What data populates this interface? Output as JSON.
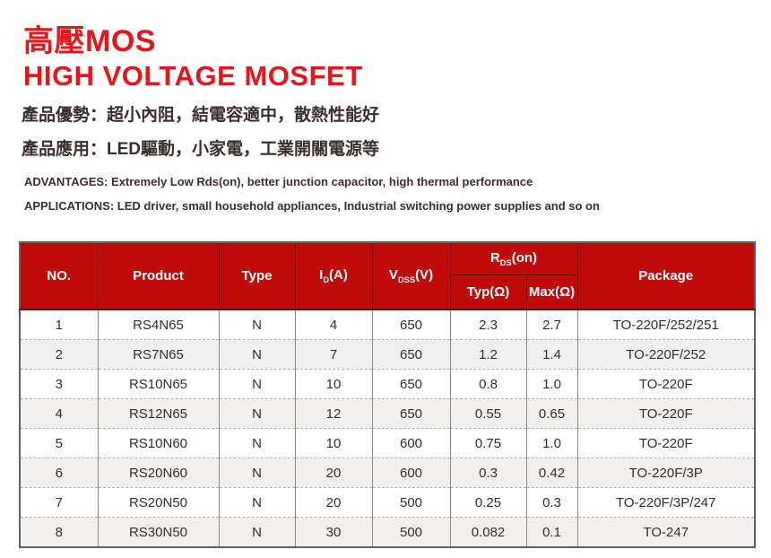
{
  "header": {
    "title_zh": "高壓MOS",
    "title_en": "HIGH VOLTAGE MOSFET",
    "advantages_zh": "產品優勢：超小內阻，結電容適中，散熱性能好",
    "applications_zh": "產品應用：LED驅動，小家電，工業開關電源等",
    "advantages_en": "ADVANTAGES: Extremely Low Rds(on), better junction capacitor, high thermal performance",
    "applications_en": "APPLICATIONS: LED driver, small household appliances, Industrial switching power supplies and so on"
  },
  "colors": {
    "title_red": "#e8141c",
    "table_header_red": "#c00b0b",
    "row_alt_gray": "#f1f0ee",
    "text_dark": "#332e2c"
  },
  "table": {
    "headers": {
      "no": "NO.",
      "product": "Product",
      "type": "Type",
      "id": {
        "base": "I",
        "sub": "D",
        "suffix": "(A)"
      },
      "vdss": {
        "base": "V",
        "sub": "DSS",
        "suffix": "(V)"
      },
      "rds": {
        "base": "R",
        "sub": "DS",
        "suffix": "(on)"
      },
      "typ": "Typ(Ω)",
      "max": "Max(Ω)",
      "package": "Package"
    },
    "rows": [
      {
        "no": "1",
        "product": "RS4N65",
        "type": "N",
        "id": "4",
        "vdss": "650",
        "typ": "2.3",
        "max": "2.7",
        "package": "TO-220F/252/251"
      },
      {
        "no": "2",
        "product": "RS7N65",
        "type": "N",
        "id": "7",
        "vdss": "650",
        "typ": "1.2",
        "max": "1.4",
        "package": "TO-220F/252"
      },
      {
        "no": "3",
        "product": "RS10N65",
        "type": "N",
        "id": "10",
        "vdss": "650",
        "typ": "0.8",
        "max": "1.0",
        "package": "TO-220F"
      },
      {
        "no": "4",
        "product": "RS12N65",
        "type": "N",
        "id": "12",
        "vdss": "650",
        "typ": "0.55",
        "max": "0.65",
        "package": "TO-220F"
      },
      {
        "no": "5",
        "product": "RS10N60",
        "type": "N",
        "id": "10",
        "vdss": "600",
        "typ": "0.75",
        "max": "1.0",
        "package": "TO-220F"
      },
      {
        "no": "6",
        "product": "RS20N60",
        "type": "N",
        "id": "20",
        "vdss": "600",
        "typ": "0.3",
        "max": "0.42",
        "package": "TO-220F/3P"
      },
      {
        "no": "7",
        "product": "RS20N50",
        "type": "N",
        "id": "20",
        "vdss": "500",
        "typ": "0.25",
        "max": "0.3",
        "package": "TO-220F/3P/247"
      },
      {
        "no": "8",
        "product": "RS30N50",
        "type": "N",
        "id": "30",
        "vdss": "500",
        "typ": "0.082",
        "max": "0.1",
        "package": "TO-247"
      }
    ]
  }
}
